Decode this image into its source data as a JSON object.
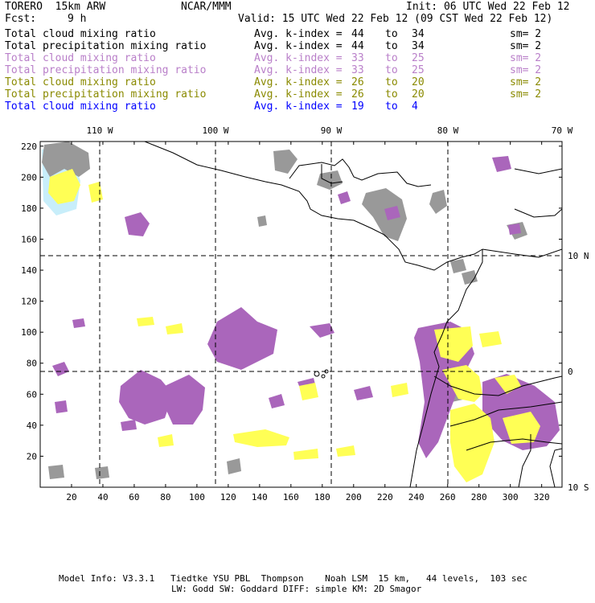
{
  "header": {
    "model": "TORERO  15km ARW",
    "org": "NCAR/MMM",
    "init": "Init: 06 UTC Wed 22 Feb 12",
    "fcst_label": "Fcst:",
    "fcst_value": "9 h",
    "valid": "Valid: 15 UTC Wed 22 Feb 12 (09 CST Wed 22 Feb 12)"
  },
  "legend": [
    {
      "field": "Total cloud mixing ratio",
      "stat": "Avg. k-index =",
      "from": "44",
      "to_word": "to",
      "to": "34",
      "sm": "sm= 2",
      "color": "#000000"
    },
    {
      "field": "Total precipitation mixing ratio",
      "stat": "Avg. k-index =",
      "from": "44",
      "to_word": "to",
      "to": "34",
      "sm": "sm= 2",
      "color": "#000000"
    },
    {
      "field": "Total cloud mixing ratio",
      "stat": "Avg. k-index =",
      "from": "33",
      "to_word": "to",
      "to": "25",
      "sm": "sm= 2",
      "color": "#b97fc9"
    },
    {
      "field": "Total precipitation mixing ratio",
      "stat": "Avg. k-index =",
      "from": "33",
      "to_word": "to",
      "to": "25",
      "sm": "sm= 2",
      "color": "#b97fc9"
    },
    {
      "field": "Total cloud mixing ratio",
      "stat": "Avg. k-index =",
      "from": "26",
      "to_word": "to",
      "to": "20",
      "sm": "sm= 2",
      "color": "#8a8a00"
    },
    {
      "field": "Total precipitation mixing ratio",
      "stat": "Avg. k-index =",
      "from": "26",
      "to_word": "to",
      "to": "20",
      "sm": "sm= 2",
      "color": "#8a8a00"
    },
    {
      "field": "Total cloud mixing ratio",
      "stat": "Avg. k-index =",
      "from": "19",
      "to_word": "to",
      "to": "4",
      "sm": "",
      "color": "#0000ff"
    }
  ],
  "map": {
    "lon_labels": [
      "110 W",
      "100 W",
      "90 W",
      "80 W",
      "70 W"
    ],
    "lat_labels": [
      "10 N",
      "0",
      "10 S"
    ],
    "x_ticks": [
      "20",
      "40",
      "60",
      "80",
      "100",
      "120",
      "140",
      "160",
      "180",
      "200",
      "220",
      "240",
      "260",
      "280",
      "300",
      "320"
    ],
    "y_ticks": [
      "220",
      "200",
      "180",
      "160",
      "140",
      "120",
      "100",
      "80",
      "60",
      "40",
      "20"
    ],
    "colors": {
      "gray": "#999999",
      "purple": "#aa66bb",
      "yellow": "#ffff55",
      "lightblue": "#c8eefa",
      "coast": "#000000",
      "grid": "#000000"
    }
  },
  "footer": {
    "line1": "Model Info: V3.3.1   Tiedtke YSU PBL  Thompson    Noah LSM  15 km,   44 levels,  103 sec",
    "line2": "LW: Godd SW: Goddard DIFF: simple KM: 2D Smagor"
  }
}
